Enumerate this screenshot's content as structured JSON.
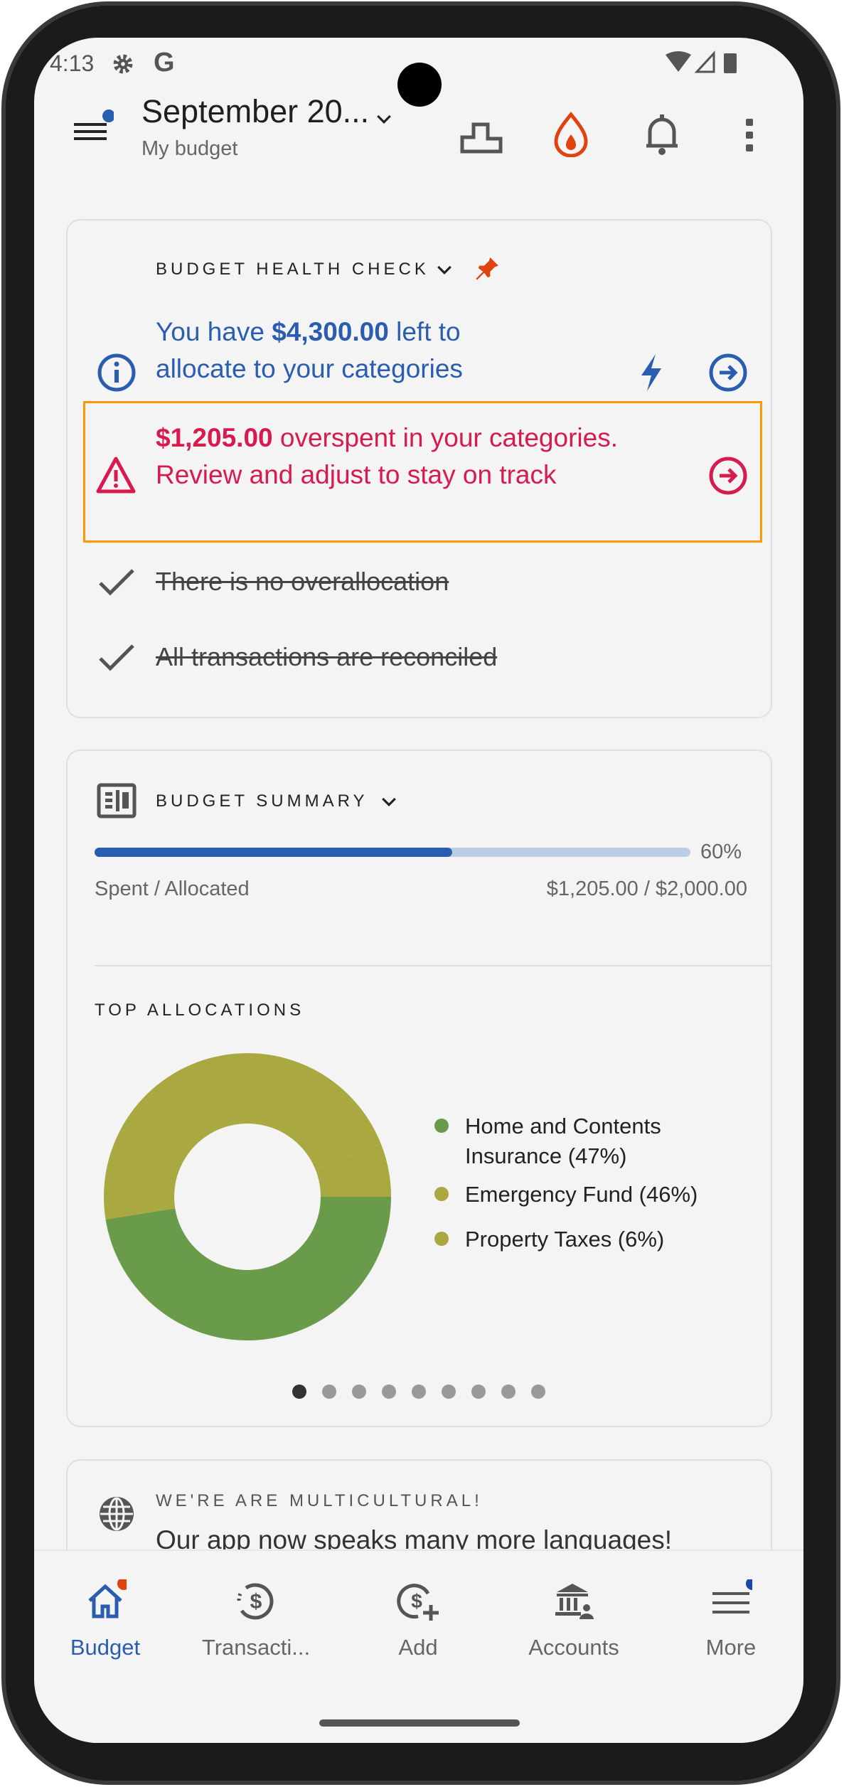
{
  "status_bar": {
    "time": "4:13"
  },
  "header": {
    "title": "September 20...",
    "subtitle": "My budget"
  },
  "health_check": {
    "title": "BUDGET HEALTH CHECK",
    "info": {
      "pre": "You have ",
      "amount": "$4,300.00",
      "post": " left to allocate to your categories"
    },
    "warning": {
      "amount": "$1,205.00",
      "text": " overspent in your categories. Review and adjust to stay on track"
    },
    "checks": [
      "There is no overallocation",
      "All transactions are reconciled"
    ]
  },
  "summary": {
    "title": "BUDGET SUMMARY",
    "progress_percent": 60,
    "progress_label": "60%",
    "spent_label": "Spent / Allocated",
    "spent_value": "$1,205.00 / $2,000.00",
    "top_title": "TOP ALLOCATIONS",
    "page_count": 9,
    "current_page": 1
  },
  "chart_data": {
    "type": "pie",
    "donut": true,
    "categories": [
      "Home and Contents Insurance",
      "Emergency Fund",
      "Property Taxes"
    ],
    "values": [
      47,
      46,
      6
    ],
    "labels": [
      "Home and Contents Insurance (47%)",
      "Emergency Fund (46%)",
      "Property Taxes (6%)"
    ],
    "colors": [
      "#6a9b4b",
      "#aaa840",
      "#aaa840"
    ],
    "legend": "right"
  },
  "promo": {
    "title": "WE'RE ARE MULTICULTURAL!",
    "text": "Our app now speaks many more languages!"
  },
  "nav": [
    {
      "label": "Budget",
      "active": true
    },
    {
      "label": "Transacti..."
    },
    {
      "label": "Add"
    },
    {
      "label": "Accounts"
    },
    {
      "label": "More"
    }
  ],
  "colors": {
    "accent": "#2a5db0",
    "danger": "#d81b4f",
    "warning_border": "#ff9800",
    "flame": "#e0440e"
  }
}
